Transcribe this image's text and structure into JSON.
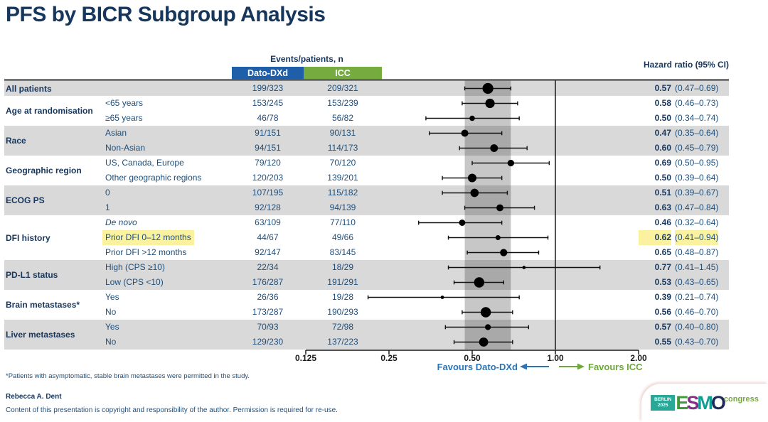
{
  "title": "PFS by BICR Subgroup Analysis",
  "table": {
    "events_header": "Events/patients, n",
    "arm1": "Dato-DXd",
    "arm2": "ICC",
    "hr_header": "Hazard ratio (95% CI)"
  },
  "chart_data": {
    "type": "scatter",
    "subtype": "forest-plot",
    "title": "PFS by BICR Subgroup Analysis",
    "xlabel": "Hazard ratio (95% CI)",
    "xscale": "log",
    "xlim": [
      0.125,
      2.0
    ],
    "axis": {
      "ticks": [
        "0.125",
        "0.25",
        "0.50",
        "1.00",
        "2.00"
      ],
      "tick_values": [
        0.125,
        0.25,
        0.5,
        1.0,
        2.0
      ],
      "reference_line": 1.0,
      "shaded_band": [
        0.47,
        0.69
      ],
      "favours_left": "Favours Dato-DXd",
      "favours_right": "Favours ICC"
    },
    "groups": [
      {
        "label": "All patients",
        "shaded": true,
        "rows": [
          {
            "sub": "",
            "dato": "199/323",
            "icc": "209/321",
            "hr": 0.57,
            "lo": 0.47,
            "hi": 0.69,
            "hr_text": "0.57",
            "ci_text": "(0.47–0.69)"
          }
        ]
      },
      {
        "label": "Age at randomisation",
        "shaded": false,
        "rows": [
          {
            "sub": "<65 years",
            "dato": "153/245",
            "icc": "153/239",
            "hr": 0.58,
            "lo": 0.46,
            "hi": 0.73,
            "hr_text": "0.58",
            "ci_text": "(0.46–0.73)"
          },
          {
            "sub": "≥65 years",
            "dato": "46/78",
            "icc": "56/82",
            "hr": 0.5,
            "lo": 0.34,
            "hi": 0.74,
            "hr_text": "0.50",
            "ci_text": "(0.34–0.74)"
          }
        ]
      },
      {
        "label": "Race",
        "shaded": true,
        "rows": [
          {
            "sub": "Asian",
            "dato": "91/151",
            "icc": "90/131",
            "hr": 0.47,
            "lo": 0.35,
            "hi": 0.64,
            "hr_text": "0.47",
            "ci_text": "(0.35–0.64)"
          },
          {
            "sub": "Non-Asian",
            "dato": "94/151",
            "icc": "114/173",
            "hr": 0.6,
            "lo": 0.45,
            "hi": 0.79,
            "hr_text": "0.60",
            "ci_text": "(0.45–0.79)"
          }
        ]
      },
      {
        "label": "Geographic region",
        "shaded": false,
        "rows": [
          {
            "sub": "US, Canada, Europe",
            "dato": "79/120",
            "icc": "70/120",
            "hr": 0.69,
            "lo": 0.5,
            "hi": 0.95,
            "hr_text": "0.69",
            "ci_text": "(0.50–0.95)"
          },
          {
            "sub": "Other geographic regions",
            "dato": "120/203",
            "icc": "139/201",
            "hr": 0.5,
            "lo": 0.39,
            "hi": 0.64,
            "hr_text": "0.50",
            "ci_text": "(0.39–0.64)"
          }
        ]
      },
      {
        "label": "ECOG PS",
        "shaded": true,
        "rows": [
          {
            "sub": "0",
            "dato": "107/195",
            "icc": "115/182",
            "hr": 0.51,
            "lo": 0.39,
            "hi": 0.67,
            "hr_text": "0.51",
            "ci_text": "(0.39–0.67)"
          },
          {
            "sub": "1",
            "dato": "92/128",
            "icc": "94/139",
            "hr": 0.63,
            "lo": 0.47,
            "hi": 0.84,
            "hr_text": "0.63",
            "ci_text": "(0.47–0.84)"
          }
        ]
      },
      {
        "label": "DFI history",
        "shaded": false,
        "rows": [
          {
            "sub": "De novo",
            "italic": true,
            "dato": "63/109",
            "icc": "77/110",
            "hr": 0.46,
            "lo": 0.32,
            "hi": 0.64,
            "hr_text": "0.46",
            "ci_text": "(0.32–0.64)"
          },
          {
            "sub": "Prior DFI 0–12 months",
            "highlight": true,
            "dato": "44/67",
            "icc": "49/66",
            "hr": 0.62,
            "lo": 0.41,
            "hi": 0.94,
            "hr_text": "0.62",
            "ci_text": "(0.41–0.94)"
          },
          {
            "sub": "Prior DFI >12 months",
            "dato": "92/147",
            "icc": "83/145",
            "hr": 0.65,
            "lo": 0.48,
            "hi": 0.87,
            "hr_text": "0.65",
            "ci_text": "(0.48–0.87)"
          }
        ]
      },
      {
        "label": "PD-L1 status",
        "shaded": true,
        "rows": [
          {
            "sub": "High (CPS ≥10)",
            "dato": "22/34",
            "icc": "18/29",
            "hr": 0.77,
            "lo": 0.41,
            "hi": 1.45,
            "hr_text": "0.77",
            "ci_text": "(0.41–1.45)"
          },
          {
            "sub": "Low (CPS <10)",
            "dato": "176/287",
            "icc": "191/291",
            "hr": 0.53,
            "lo": 0.43,
            "hi": 0.65,
            "hr_text": "0.53",
            "ci_text": "(0.43–0.65)"
          }
        ]
      },
      {
        "label": "Brain metastases*",
        "shaded": false,
        "rows": [
          {
            "sub": "Yes",
            "dato": "26/36",
            "icc": "19/28",
            "hr": 0.39,
            "lo": 0.21,
            "hi": 0.74,
            "hr_text": "0.39",
            "ci_text": "(0.21–0.74)"
          },
          {
            "sub": "No",
            "dato": "173/287",
            "icc": "190/293",
            "hr": 0.56,
            "lo": 0.46,
            "hi": 0.7,
            "hr_text": "0.56",
            "ci_text": "(0.46–0.70)"
          }
        ]
      },
      {
        "label": "Liver metastases",
        "shaded": true,
        "rows": [
          {
            "sub": "Yes",
            "dato": "70/93",
            "icc": "72/98",
            "hr": 0.57,
            "lo": 0.4,
            "hi": 0.8,
            "hr_text": "0.57",
            "ci_text": "(0.40–0.80)"
          },
          {
            "sub": "No",
            "dato": "129/230",
            "icc": "137/223",
            "hr": 0.55,
            "lo": 0.43,
            "hi": 0.7,
            "hr_text": "0.55",
            "ci_text": "(0.43–0.70)"
          }
        ]
      }
    ]
  },
  "footnote": "*Patients with asymptomatic, stable brain metastases were permitted in the study.",
  "author": "Rebecca A. Dent",
  "copyright": "Content of this presentation is copyright and responsibility of the author. Permission is required for re-use.",
  "logo": {
    "berlin": "BERLIN",
    "year": "2025",
    "esmo": "ESMO",
    "congress": "congress"
  },
  "colors": {
    "title_navy": "#16365C",
    "text_navy": "#1F4E79",
    "dato_blue": "#1F5FA9",
    "icc_green": "#76AC3F",
    "stripe_gray": "#D9D9D9",
    "band_gray": "rgba(0,0,0,0.22)",
    "highlight_yellow": "#FBF2A0",
    "favours_blue": "#2E74B5",
    "favours_green": "#6EA73C",
    "esmo_letters": [
      "#3E9B3A",
      "#872F88",
      "#0F9F94",
      "#1F2A5A"
    ]
  }
}
